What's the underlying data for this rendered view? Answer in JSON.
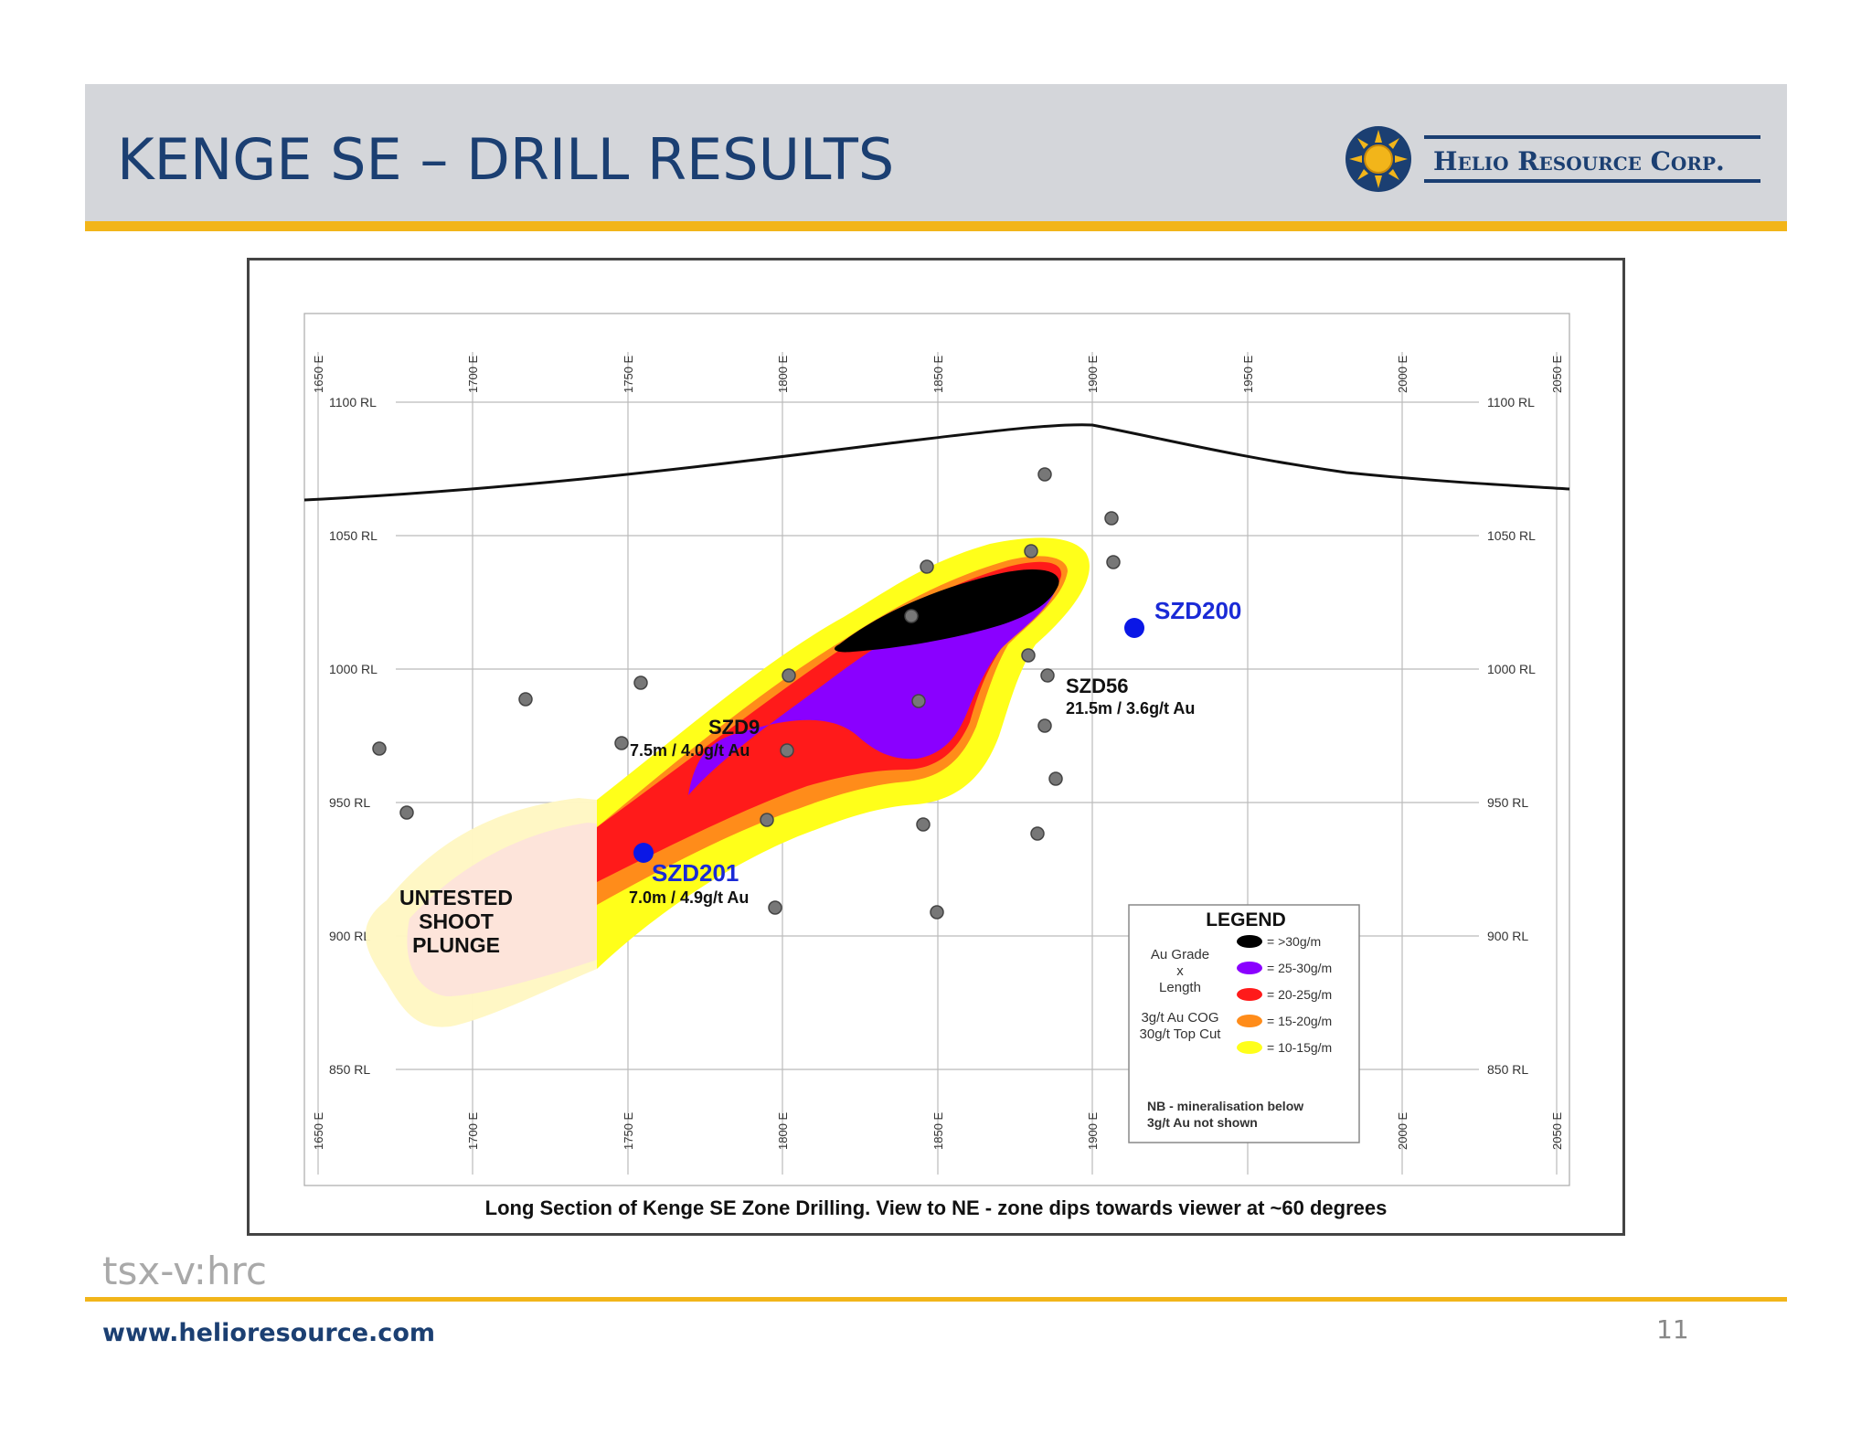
{
  "slide": {
    "title": "KENGE SE – DRILL RESULTS",
    "ticker": "tsx-v:hrc",
    "url": "www.helioresource.com",
    "page_number": "11"
  },
  "logo": {
    "text": "Helio Resource Corp.",
    "icon": "sun-icon",
    "colors": {
      "navy": "#1b3f72",
      "gold": "#f2b51a"
    }
  },
  "section": {
    "caption": "Long Section of Kenge SE Zone Drilling. View to NE - zone dips towards viewer at ~60 degrees",
    "easting_labels": [
      "1650 E",
      "1700 E",
      "1750 E",
      "1800 E",
      "1850 E",
      "1900 E",
      "1950 E",
      "2000 E",
      "2050 E"
    ],
    "rl_labels": [
      "1100 RL",
      "1050 RL",
      "1000 RL",
      "950 RL",
      "900 RL",
      "850 RL"
    ],
    "annotations": {
      "szd200": "SZD200",
      "szd56": "SZD56",
      "szd56_result": "21.5m / 3.6g/t Au",
      "szd9": "SZD9",
      "szd9_result": "7.5m / 4.0g/t Au",
      "szd201": "SZD201",
      "szd201_result": "7.0m / 4.9g/t Au",
      "untested": [
        "UNTESTED",
        "SHOOT",
        "PLUNGE"
      ]
    },
    "legend": {
      "title": "LEGEND",
      "grade_label": [
        "Au Grade",
        "x",
        "Length"
      ],
      "cog_label": [
        "3g/t Au COG",
        "30g/t Top Cut"
      ],
      "items": [
        {
          "label": "=   >30g/m",
          "color": "#000000"
        },
        {
          "label": "= 25-30g/m",
          "color": "#8a00ff"
        },
        {
          "label": "= 20-25g/m",
          "color": "#ff1a1a"
        },
        {
          "label": "= 15-20g/m",
          "color": "#ff8c1a"
        },
        {
          "label": "= 10-15g/m",
          "color": "#ffff1a"
        }
      ],
      "note": [
        "NB - mineralisation below",
        "3g/t Au not shown"
      ]
    }
  }
}
